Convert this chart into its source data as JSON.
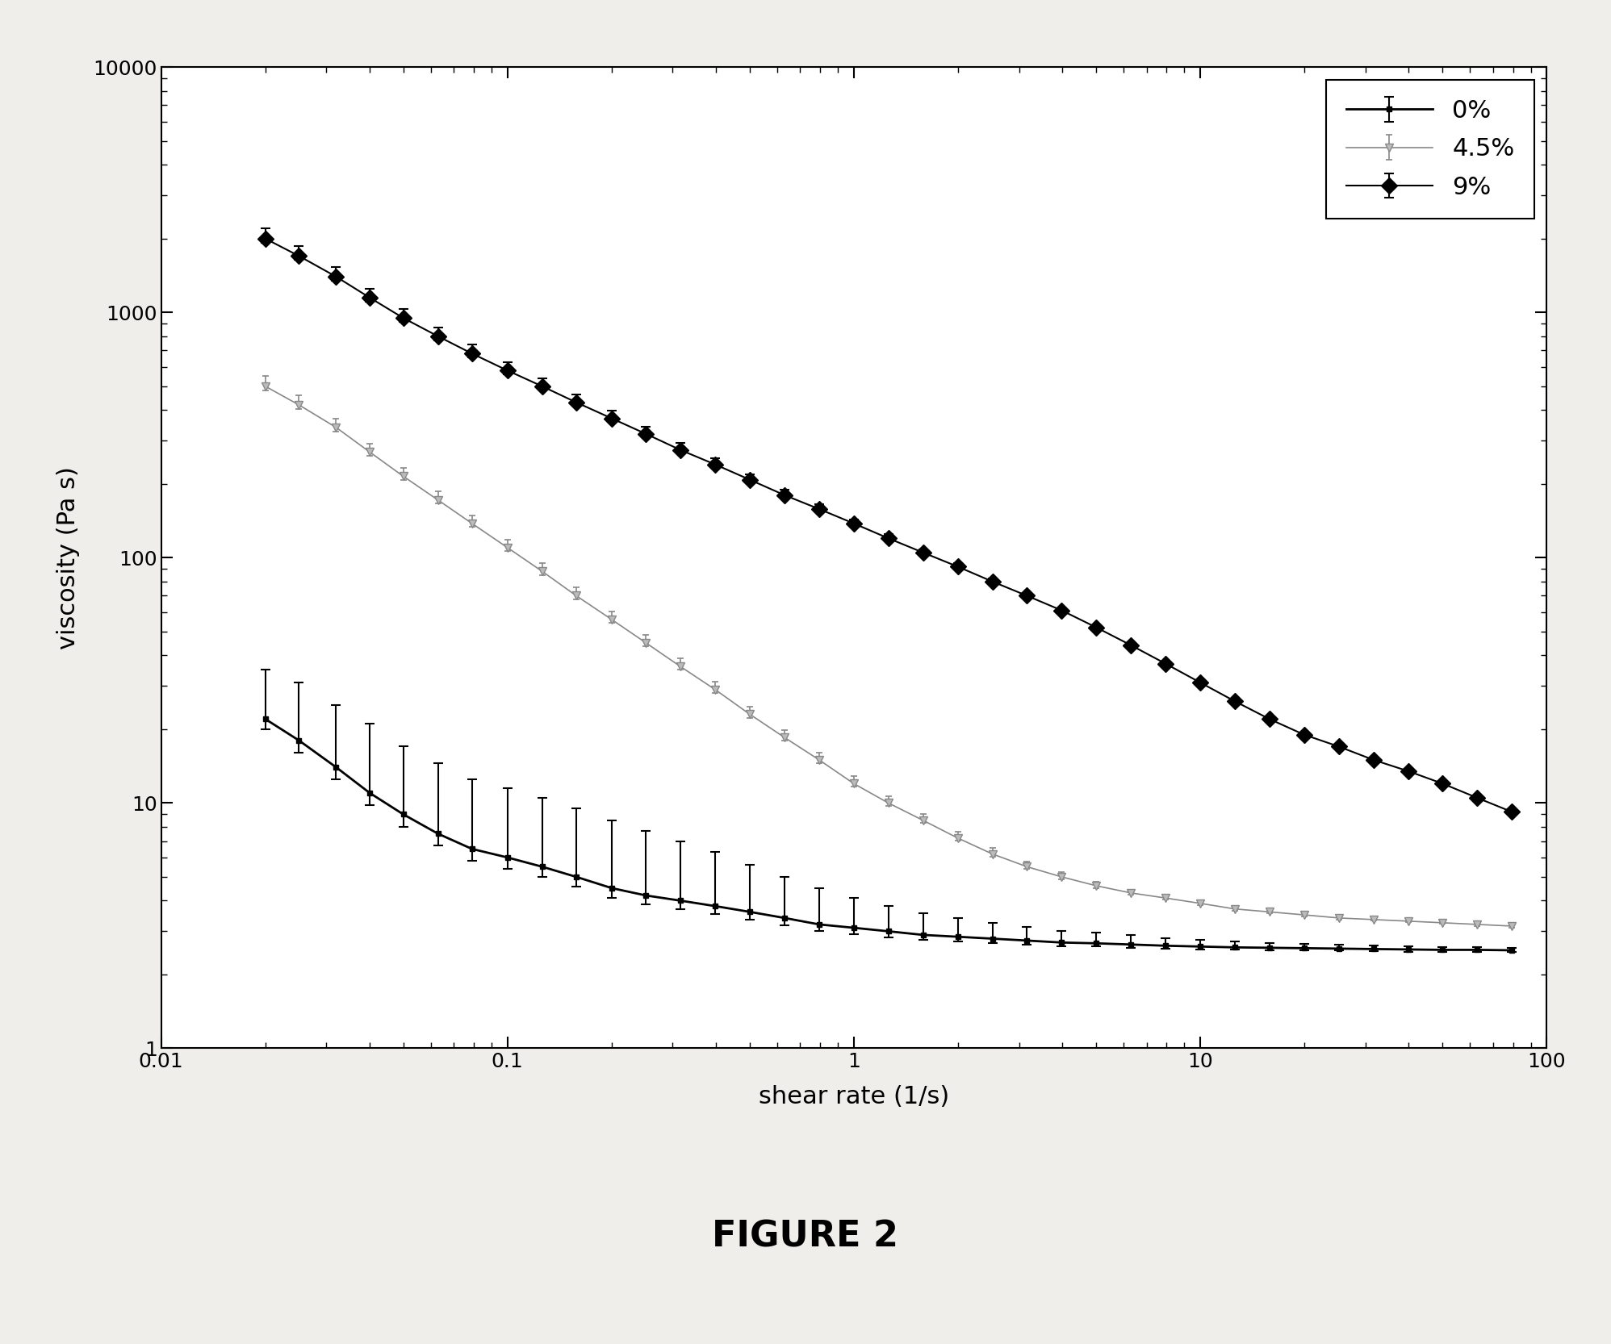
{
  "title": "FIGURE 2",
  "xlabel": "shear rate (1/s)",
  "ylabel": "viscosity (Pa s)",
  "xlim": [
    0.01,
    100
  ],
  "ylim": [
    1,
    10000
  ],
  "plot_bg": "#ffffff",
  "fig_bg": "#f0eeea",
  "legend_loc": "upper right",
  "tick_fontsize": 18,
  "label_fontsize": 22,
  "title_fontsize": 32,
  "series": [
    {
      "label": "0%",
      "line_color": "#000000",
      "marker": "s",
      "marker_size": 4,
      "marker_facecolor": "#000000",
      "marker_edgecolor": "#000000",
      "line_width": 2.0,
      "ecolor": "#000000",
      "elinewidth": 1.5,
      "capsize": 4,
      "x": [
        0.02,
        0.025,
        0.032,
        0.04,
        0.05,
        0.063,
        0.079,
        0.1,
        0.126,
        0.158,
        0.2,
        0.251,
        0.316,
        0.398,
        0.501,
        0.631,
        0.794,
        1.0,
        1.259,
        1.585,
        1.995,
        2.512,
        3.162,
        3.981,
        5.012,
        6.31,
        7.943,
        10.0,
        12.59,
        15.85,
        19.95,
        25.12,
        31.62,
        39.81,
        50.12,
        63.1,
        79.43
      ],
      "y": [
        22,
        18,
        14,
        11,
        9,
        7.5,
        6.5,
        6.0,
        5.5,
        5.0,
        4.5,
        4.2,
        4.0,
        3.8,
        3.6,
        3.4,
        3.2,
        3.1,
        3.0,
        2.9,
        2.85,
        2.8,
        2.75,
        2.7,
        2.68,
        2.65,
        2.62,
        2.6,
        2.58,
        2.57,
        2.56,
        2.55,
        2.54,
        2.53,
        2.52,
        2.52,
        2.51
      ],
      "yerr_lower": [
        2,
        2,
        1.5,
        1.2,
        1.0,
        0.8,
        0.7,
        0.6,
        0.5,
        0.45,
        0.4,
        0.35,
        0.3,
        0.28,
        0.25,
        0.22,
        0.2,
        0.18,
        0.16,
        0.14,
        0.12,
        0.11,
        0.1,
        0.09,
        0.08,
        0.08,
        0.07,
        0.07,
        0.06,
        0.06,
        0.05,
        0.05,
        0.05,
        0.05,
        0.05,
        0.04,
        0.04
      ],
      "yerr_upper": [
        13,
        13,
        11,
        10,
        8,
        7,
        6,
        5.5,
        5,
        4.5,
        4,
        3.5,
        3,
        2.5,
        2,
        1.6,
        1.3,
        1.0,
        0.8,
        0.65,
        0.55,
        0.45,
        0.38,
        0.32,
        0.28,
        0.24,
        0.2,
        0.17,
        0.14,
        0.12,
        0.1,
        0.09,
        0.08,
        0.07,
        0.06,
        0.06,
        0.05
      ]
    },
    {
      "label": "4.5%",
      "line_color": "#888888",
      "marker": "v",
      "marker_size": 7,
      "marker_facecolor": "#bbbbbb",
      "marker_edgecolor": "#888888",
      "line_width": 1.2,
      "ecolor": "#888888",
      "elinewidth": 1.2,
      "capsize": 3,
      "x": [
        0.02,
        0.025,
        0.032,
        0.04,
        0.05,
        0.063,
        0.079,
        0.1,
        0.126,
        0.158,
        0.2,
        0.251,
        0.316,
        0.398,
        0.501,
        0.631,
        0.794,
        1.0,
        1.259,
        1.585,
        1.995,
        2.512,
        3.162,
        3.981,
        5.012,
        6.31,
        7.943,
        10.0,
        12.59,
        15.85,
        19.95,
        25.12,
        31.62,
        39.81,
        50.12,
        63.1,
        79.43
      ],
      "y": [
        500,
        420,
        340,
        270,
        215,
        172,
        138,
        110,
        88,
        70,
        56,
        45,
        36,
        29,
        23,
        18.5,
        15,
        12,
        10,
        8.5,
        7.2,
        6.2,
        5.5,
        5.0,
        4.6,
        4.3,
        4.1,
        3.9,
        3.7,
        3.6,
        3.5,
        3.4,
        3.35,
        3.3,
        3.25,
        3.2,
        3.15
      ],
      "yerr_lower": [
        20,
        16,
        12,
        9,
        7,
        5.5,
        4.5,
        3.5,
        2.8,
        2.2,
        1.8,
        1.4,
        1.1,
        0.9,
        0.7,
        0.55,
        0.45,
        0.36,
        0.28,
        0.22,
        0.18,
        0.15,
        0.12,
        0.1,
        0.09,
        0.08,
        0.07,
        0.06,
        0.06,
        0.05,
        0.05,
        0.05,
        0.04,
        0.04,
        0.04,
        0.04,
        0.04
      ],
      "yerr_upper": [
        50,
        40,
        30,
        22,
        18,
        14,
        11,
        8.5,
        7,
        5.5,
        4.5,
        3.5,
        2.8,
        2.2,
        1.8,
        1.4,
        1.1,
        0.9,
        0.7,
        0.55,
        0.45,
        0.35,
        0.28,
        0.22,
        0.18,
        0.14,
        0.12,
        0.1,
        0.08,
        0.07,
        0.06,
        0.06,
        0.05,
        0.05,
        0.04,
        0.04,
        0.04
      ]
    },
    {
      "label": "9%",
      "line_color": "#000000",
      "marker": "D",
      "marker_size": 10,
      "marker_facecolor": "#000000",
      "marker_edgecolor": "#000000",
      "line_width": 1.5,
      "ecolor": "#000000",
      "elinewidth": 1.5,
      "capsize": 4,
      "x": [
        0.02,
        0.025,
        0.032,
        0.04,
        0.05,
        0.063,
        0.079,
        0.1,
        0.126,
        0.158,
        0.2,
        0.251,
        0.316,
        0.398,
        0.501,
        0.631,
        0.794,
        1.0,
        1.259,
        1.585,
        1.995,
        2.512,
        3.162,
        3.981,
        5.012,
        6.31,
        7.943,
        10.0,
        12.59,
        15.85,
        19.95,
        25.12,
        31.62,
        39.81,
        50.12,
        63.1,
        79.43
      ],
      "y": [
        2000,
        1700,
        1400,
        1150,
        950,
        800,
        680,
        580,
        500,
        430,
        370,
        320,
        275,
        240,
        208,
        180,
        158,
        138,
        120,
        105,
        92,
        80,
        70,
        61,
        52,
        44,
        37,
        31,
        26,
        22,
        19,
        17,
        15,
        13.5,
        12,
        10.5,
        9.2
      ],
      "yerr_lower": [
        80,
        65,
        55,
        45,
        37,
        30,
        25,
        20,
        17,
        14,
        11,
        9,
        7,
        5.5,
        4.5,
        3.5,
        2.8,
        2.2,
        1.8,
        1.4,
        1.1,
        0.9,
        0.7,
        0.6,
        0.5,
        0.4,
        0.35,
        0.3,
        0.25,
        0.22,
        0.18,
        0.16,
        0.14,
        0.12,
        0.1,
        0.09,
        0.08
      ],
      "yerr_upper": [
        200,
        170,
        130,
        100,
        85,
        70,
        58,
        48,
        40,
        33,
        27,
        22,
        18,
        14,
        11,
        9,
        7,
        5.5,
        4.5,
        3.5,
        2.8,
        2.2,
        1.8,
        1.4,
        1.1,
        0.9,
        0.75,
        0.6,
        0.5,
        0.4,
        0.32,
        0.26,
        0.22,
        0.18,
        0.15,
        0.12,
        0.1
      ]
    }
  ]
}
